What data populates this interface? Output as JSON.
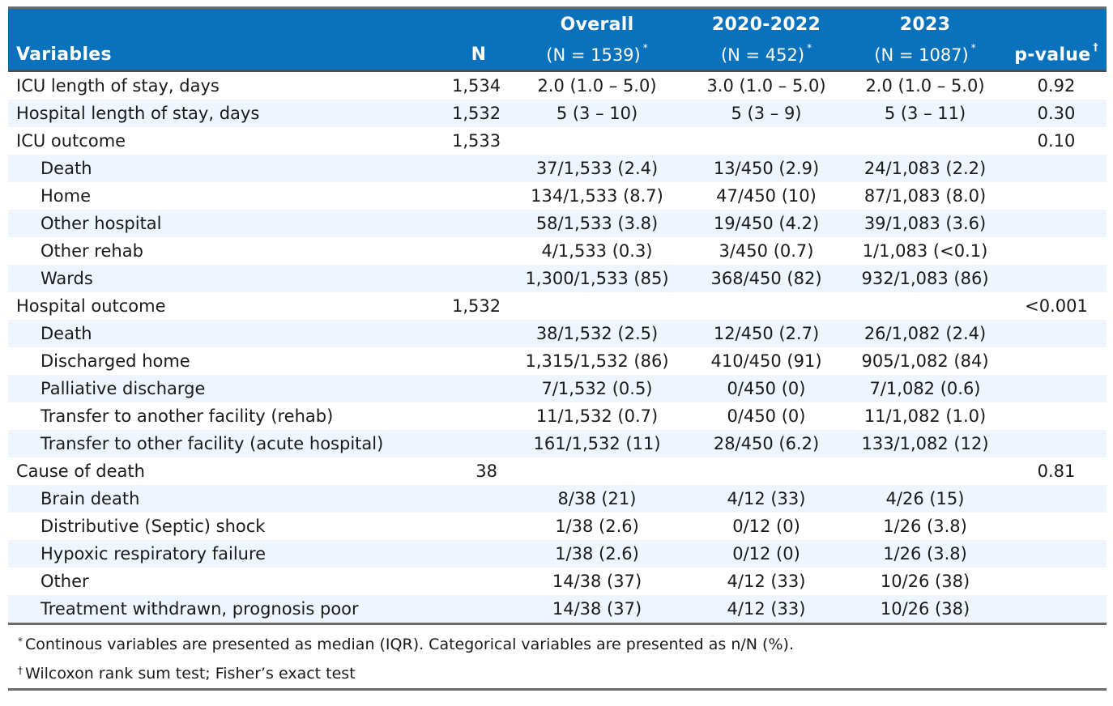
{
  "header": {
    "variables": "Variables",
    "n": "N",
    "overall_title": "Overall",
    "overall_sub": "(N = 1539)",
    "period1_title": "2020-2022",
    "period1_sub": "(N = 452)",
    "period2_title": "2023",
    "period2_sub": "(N = 1087)",
    "pvalue": "p-value",
    "star": "*",
    "dagger": "†"
  },
  "rows": [
    {
      "label": "ICU length of stay, days",
      "n": "1,534",
      "overall": "2.0 (1.0 – 5.0)",
      "p1": "3.0 (1.0 – 5.0)",
      "p2": "2.0 (1.0 – 5.0)",
      "p": "0.92"
    },
    {
      "label": "Hospital length of stay, days",
      "n": "1,532",
      "overall": "5 (3 – 10)",
      "p1": "5 (3 – 9)",
      "p2": "5 (3 – 11)",
      "p": "0.30"
    },
    {
      "label": "ICU outcome",
      "n": "1,533",
      "overall": "",
      "p1": "",
      "p2": "",
      "p": "0.10"
    },
    {
      "label": "Death",
      "n": "",
      "overall": "37/1,533 (2.4)",
      "p1": "13/450 (2.9)",
      "p2": "24/1,083 (2.2)",
      "p": ""
    },
    {
      "label": "Home",
      "n": "",
      "overall": "134/1,533 (8.7)",
      "p1": "47/450 (10)",
      "p2": "87/1,083 (8.0)",
      "p": ""
    },
    {
      "label": "Other hospital",
      "n": "",
      "overall": "58/1,533 (3.8)",
      "p1": "19/450 (4.2)",
      "p2": "39/1,083 (3.6)",
      "p": ""
    },
    {
      "label": "Other rehab",
      "n": "",
      "overall": "4/1,533 (0.3)",
      "p1": "3/450 (0.7)",
      "p2": "1/1,083 (<0.1)",
      "p": ""
    },
    {
      "label": "Wards",
      "n": "",
      "overall": "1,300/1,533 (85)",
      "p1": "368/450 (82)",
      "p2": "932/1,083 (86)",
      "p": ""
    },
    {
      "label": "Hospital outcome",
      "n": "1,532",
      "overall": "",
      "p1": "",
      "p2": "",
      "p": "<0.001"
    },
    {
      "label": "Death",
      "n": "",
      "overall": "38/1,532 (2.5)",
      "p1": "12/450 (2.7)",
      "p2": "26/1,082 (2.4)",
      "p": ""
    },
    {
      "label": "Discharged home",
      "n": "",
      "overall": "1,315/1,532 (86)",
      "p1": "410/450 (91)",
      "p2": "905/1,082 (84)",
      "p": ""
    },
    {
      "label": "Palliative discharge",
      "n": "",
      "overall": "7/1,532 (0.5)",
      "p1": "0/450 (0)",
      "p2": "7/1,082 (0.6)",
      "p": ""
    },
    {
      "label": "Transfer to another facility (rehab)",
      "n": "",
      "overall": "11/1,532 (0.7)",
      "p1": "0/450 (0)",
      "p2": "11/1,082 (1.0)",
      "p": ""
    },
    {
      "label": "Transfer to other facility (acute hospital)",
      "n": "",
      "overall": "161/1,532 (11)",
      "p1": "28/450 (6.2)",
      "p2": "133/1,082 (12)",
      "p": ""
    },
    {
      "label": "Cause of death",
      "n": "38",
      "overall": "",
      "p1": "",
      "p2": "",
      "p": "0.81"
    },
    {
      "label": "Brain death",
      "n": "",
      "overall": "8/38 (21)",
      "p1": "4/12 (33)",
      "p2": "4/26 (15)",
      "p": ""
    },
    {
      "label": "Distributive (Septic) shock",
      "n": "",
      "overall": "1/38 (2.6)",
      "p1": "0/12 (0)",
      "p2": "1/26 (3.8)",
      "p": ""
    },
    {
      "label": "Hypoxic respiratory failure",
      "n": "",
      "overall": "1/38 (2.6)",
      "p1": "0/12 (0)",
      "p2": "1/26 (3.8)",
      "p": ""
    },
    {
      "label": "Other",
      "n": "",
      "overall": "14/38 (37)",
      "p1": "4/12 (33)",
      "p2": "10/26 (38)",
      "p": ""
    },
    {
      "label": "Treatment withdrawn, prognosis poor",
      "n": "",
      "overall": "14/38 (37)",
      "p1": "4/12 (33)",
      "p2": "10/26 (38)",
      "p": ""
    }
  ],
  "footnotes": {
    "star_mark": "*",
    "star_text": "Continous variables are presented as median (IQR). Categorical variables are presented as n/N (%).",
    "dagger_mark": "†",
    "dagger_text": "Wilcoxon rank sum test; Fisher’s exact test"
  },
  "colors": {
    "header_bg": "#0a72bd",
    "row_shade": "#eef5fc"
  }
}
